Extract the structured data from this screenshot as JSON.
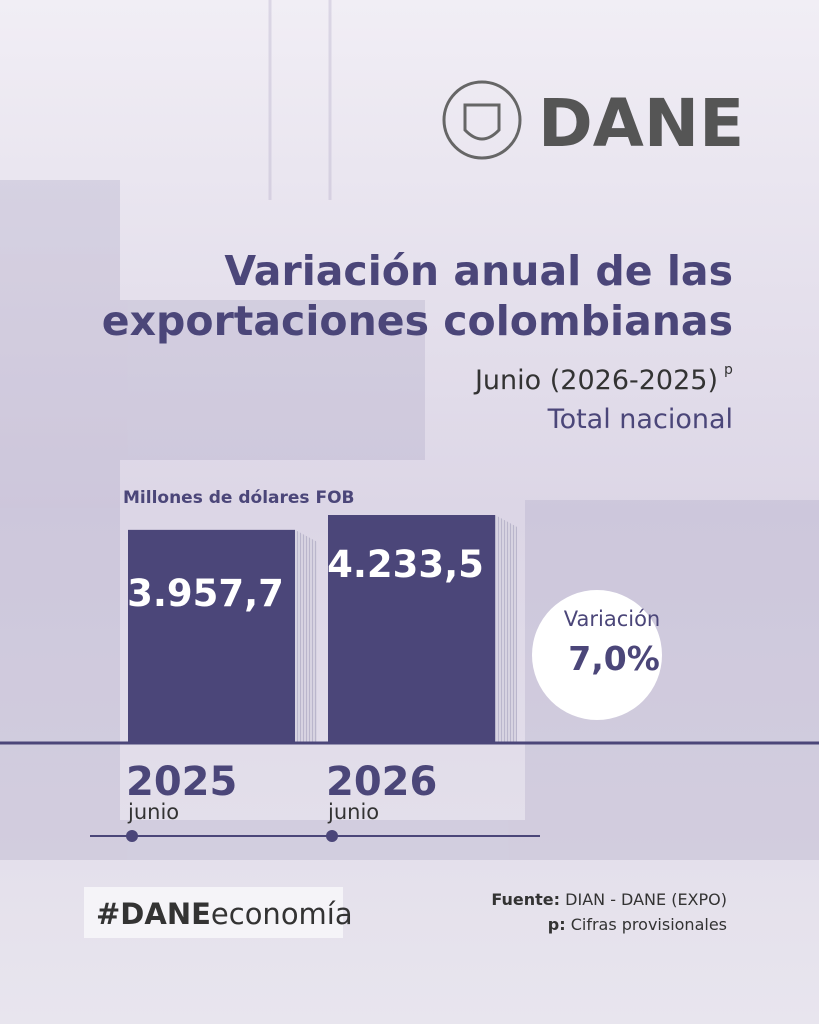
{
  "logo": "DANE",
  "chart_data": {
    "type": "bar",
    "title_lines": [
      "Variación anual de las",
      "exportaciones colombianas"
    ],
    "subtitle": "Junio (2026-2025)",
    "subtitle_note": "p",
    "subtitle2": "Total nacional",
    "ylabel": "Millones de dólares FOB",
    "categories": [
      "2025",
      "2026"
    ],
    "category_sublabels": [
      "junio",
      "junio"
    ],
    "values": [
      3957.7,
      4233.5
    ],
    "value_labels": [
      "3.957,7",
      "4.233,5"
    ],
    "color": "#4b4679",
    "variation": {
      "label": "Variación",
      "value": 7.0,
      "value_label": "7,0%"
    }
  },
  "footer": {
    "hashtag": [
      "#DANE",
      "economía"
    ],
    "source_label": "Fuente:",
    "source": "DIAN - DANE (EXPO)",
    "note_label": "p:",
    "note": "Cifras provisionales"
  }
}
